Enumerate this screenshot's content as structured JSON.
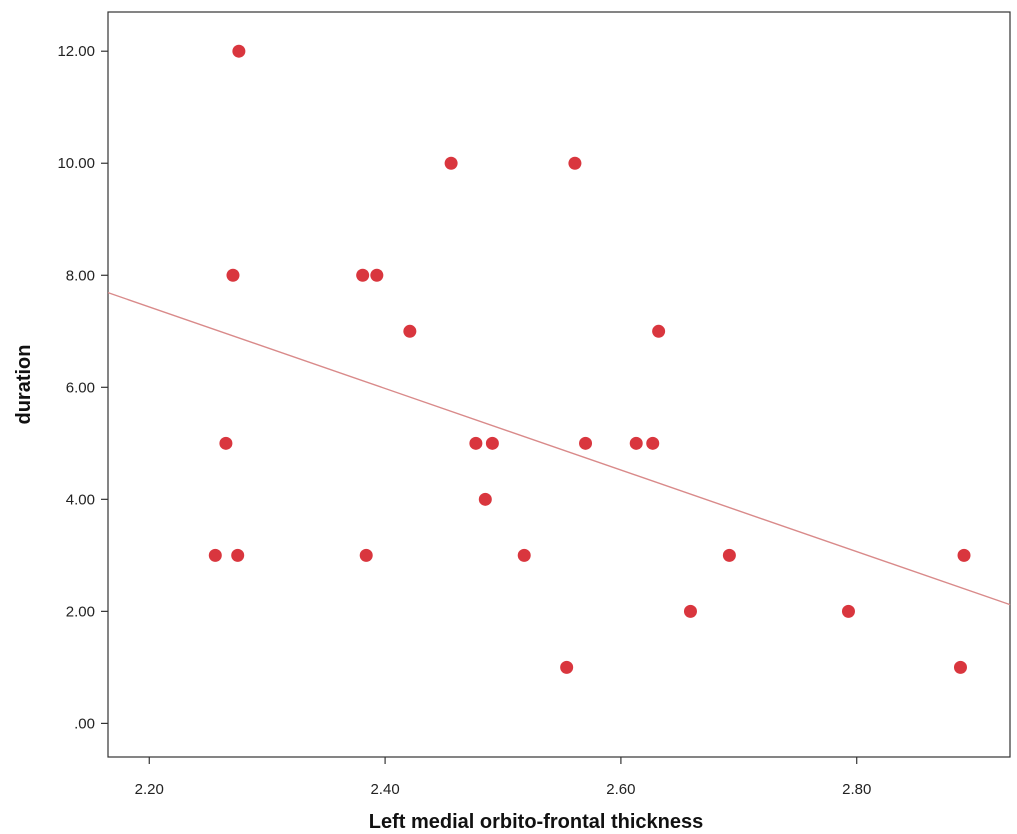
{
  "chart_data": {
    "type": "scatter",
    "xlabel": "Left medial orbito-frontal thickness",
    "ylabel": "duration",
    "xlim": [
      2.165,
      2.93
    ],
    "ylim": [
      -0.6,
      12.7
    ],
    "x_ticks": [
      2.2,
      2.4,
      2.6,
      2.8
    ],
    "x_tick_labels": [
      "2.20",
      "2.40",
      "2.60",
      "2.80"
    ],
    "y_ticks": [
      0,
      2,
      4,
      6,
      8,
      10,
      12
    ],
    "y_tick_labels": [
      ".00",
      "2.00",
      "4.00",
      "6.00",
      "8.00",
      "10.00",
      "12.00"
    ],
    "grid": false,
    "point_color": "#d9363e",
    "fit_line_color": "#d98a8a",
    "points": [
      {
        "x": 2.276,
        "y": 12
      },
      {
        "x": 2.456,
        "y": 10
      },
      {
        "x": 2.561,
        "y": 10
      },
      {
        "x": 2.271,
        "y": 8
      },
      {
        "x": 2.381,
        "y": 8
      },
      {
        "x": 2.393,
        "y": 8
      },
      {
        "x": 2.421,
        "y": 7
      },
      {
        "x": 2.632,
        "y": 7
      },
      {
        "x": 2.265,
        "y": 5
      },
      {
        "x": 2.477,
        "y": 5
      },
      {
        "x": 2.491,
        "y": 5
      },
      {
        "x": 2.57,
        "y": 5
      },
      {
        "x": 2.613,
        "y": 5
      },
      {
        "x": 2.627,
        "y": 5
      },
      {
        "x": 2.485,
        "y": 4
      },
      {
        "x": 2.256,
        "y": 3
      },
      {
        "x": 2.275,
        "y": 3
      },
      {
        "x": 2.384,
        "y": 3
      },
      {
        "x": 2.518,
        "y": 3
      },
      {
        "x": 2.692,
        "y": 3
      },
      {
        "x": 2.891,
        "y": 3
      },
      {
        "x": 2.659,
        "y": 2
      },
      {
        "x": 2.793,
        "y": 2
      },
      {
        "x": 2.554,
        "y": 1
      },
      {
        "x": 2.888,
        "y": 1
      }
    ],
    "fit_line": {
      "x": [
        2.165,
        2.93
      ],
      "y": [
        7.69,
        2.12
      ]
    }
  }
}
